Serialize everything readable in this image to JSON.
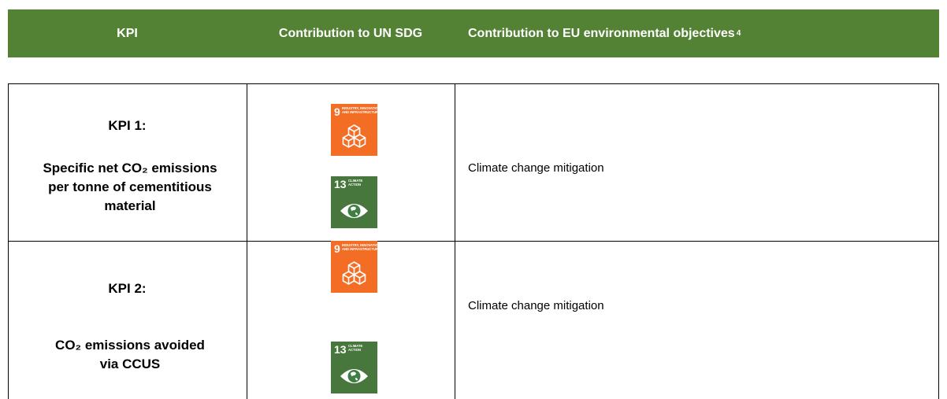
{
  "header": {
    "kpi": "KPI",
    "sdg": "Contribution to UN SDG",
    "eu": "Contribution to EU environmental objectives",
    "eu_footnote": "4"
  },
  "sdg_icons": {
    "industry": {
      "number": "9",
      "lines": [
        "INDUSTRY, INNOVATION",
        "AND INFRASTRUCTURE"
      ]
    },
    "climate": {
      "number": "13",
      "lines": [
        "CLIMATE",
        "ACTION"
      ]
    }
  },
  "rows": [
    {
      "kpi": "KPI 1:",
      "description": "Specific net CO₂ emissions per tonne of cementitious material",
      "eu": "Climate change mitigation"
    },
    {
      "kpi": "KPI 2:",
      "description": "CO₂ emissions avoided via CCUS",
      "eu": "Climate change mitigation"
    }
  ]
}
